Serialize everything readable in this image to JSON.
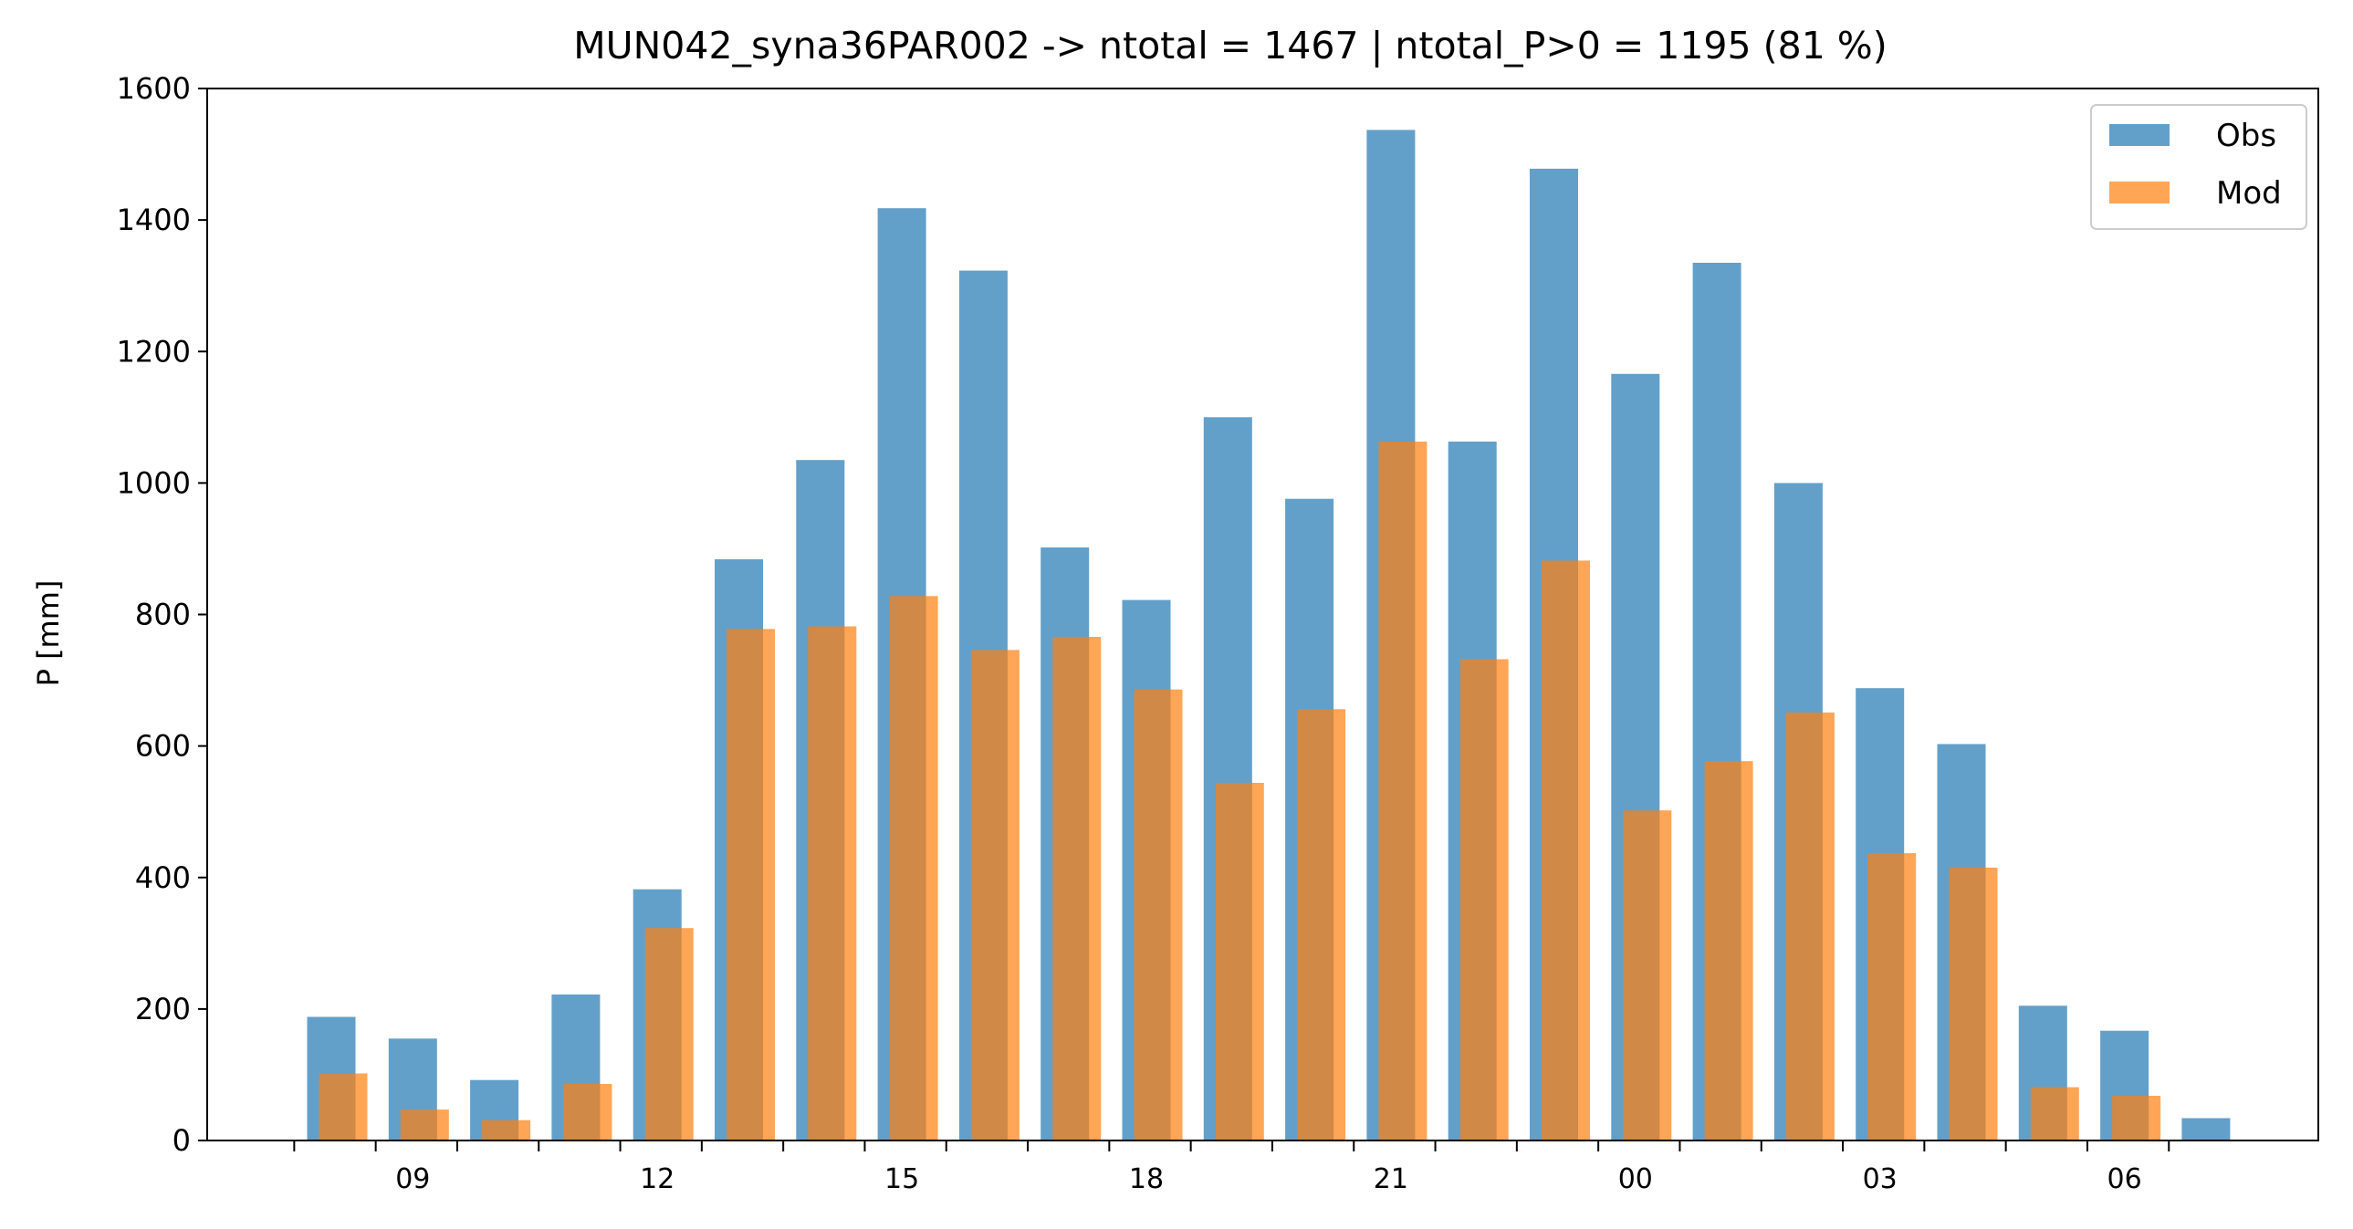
{
  "chart_data": {
    "type": "bar",
    "title": "MUN042_syna36PAR002 -> ntotal = 1467 | ntotal_P>0 = 1195 (81 %)",
    "xlabel": "",
    "ylabel": "P [mm]",
    "ylim": [
      0,
      1600
    ],
    "yticks": [
      0,
      200,
      400,
      600,
      800,
      1000,
      1200,
      1400,
      1600
    ],
    "hours": [
      8,
      9,
      10,
      11,
      12,
      13,
      14,
      15,
      16,
      17,
      18,
      19,
      20,
      21,
      22,
      23,
      0,
      1,
      2,
      3,
      4,
      5,
      6,
      7
    ],
    "xtick_labels": [
      "09",
      "12",
      "15",
      "18",
      "21",
      "00",
      "03",
      "06"
    ],
    "legend_position": "upper right",
    "grid": false,
    "series": [
      {
        "name": "Obs",
        "color": "#1f77b4",
        "values": [
          188,
          155,
          92,
          222,
          382,
          884,
          1035,
          1418,
          1323,
          902,
          822,
          1100,
          976,
          1537,
          1063,
          1478,
          1166,
          1335,
          1000,
          688,
          603,
          205,
          167,
          34
        ]
      },
      {
        "name": "Mod",
        "color": "#ff7f0e",
        "values": [
          102,
          47,
          31,
          86,
          323,
          778,
          782,
          828,
          746,
          766,
          686,
          544,
          656,
          1063,
          732,
          882,
          502,
          577,
          651,
          437,
          415,
          81,
          68,
          0
        ]
      }
    ]
  }
}
